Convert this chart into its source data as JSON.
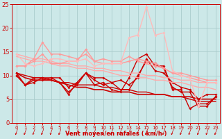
{
  "bg_color": "#cce8e8",
  "grid_color": "#aacccc",
  "xlabel": "Vent moyen/en rafales ( km/h )",
  "xlabel_color": "#cc0000",
  "tick_color": "#cc0000",
  "xlim": [
    -0.5,
    23.5
  ],
  "ylim": [
    0,
    25
  ],
  "yticks": [
    0,
    5,
    10,
    15,
    20,
    25
  ],
  "xticks": [
    0,
    1,
    2,
    3,
    4,
    5,
    6,
    7,
    8,
    9,
    10,
    11,
    12,
    13,
    14,
    15,
    16,
    17,
    18,
    19,
    20,
    21,
    22,
    23
  ],
  "series": [
    {
      "x": [
        0,
        1,
        2,
        3,
        4,
        5,
        6,
        7,
        8,
        9,
        10,
        11,
        12,
        13,
        14,
        15,
        16,
        17,
        18,
        19,
        20,
        21,
        22,
        23
      ],
      "y": [
        10.5,
        8.0,
        8.5,
        9.5,
        9.0,
        8.5,
        6.0,
        8.5,
        10.5,
        8.0,
        8.5,
        7.0,
        6.5,
        9.5,
        13.5,
        14.5,
        12.0,
        12.0,
        7.0,
        7.0,
        3.0,
        4.0,
        4.0,
        5.5
      ],
      "color": "#cc0000",
      "lw": 1.0,
      "marker": "D",
      "ms": 2.0
    },
    {
      "x": [
        0,
        1,
        2,
        3,
        4,
        5,
        6,
        7,
        8,
        9,
        10,
        11,
        12,
        13,
        14,
        15,
        16,
        17,
        18,
        19,
        20,
        21,
        22,
        23
      ],
      "y": [
        10.0,
        8.0,
        9.5,
        9.5,
        9.5,
        9.5,
        7.5,
        8.5,
        10.5,
        9.5,
        9.5,
        8.5,
        9.0,
        8.0,
        9.5,
        13.5,
        11.0,
        10.5,
        8.5,
        7.5,
        7.0,
        5.0,
        6.0,
        6.0
      ],
      "color": "#cc0000",
      "lw": 1.0,
      "marker": "D",
      "ms": 2.0
    },
    {
      "x": [
        0,
        1,
        2,
        3,
        4,
        5,
        6,
        7,
        8,
        9,
        10,
        11,
        12,
        13,
        14,
        15,
        16,
        17,
        18,
        19,
        20,
        21,
        22,
        23
      ],
      "y": [
        10.5,
        9.5,
        9.0,
        9.0,
        9.0,
        8.5,
        8.0,
        7.5,
        7.5,
        7.0,
        7.0,
        6.5,
        6.5,
        6.5,
        6.0,
        6.0,
        6.0,
        6.0,
        5.5,
        5.5,
        5.5,
        5.0,
        5.0,
        5.0
      ],
      "color": "#cc0000",
      "lw": 1.2,
      "marker": null,
      "ms": 0
    },
    {
      "x": [
        0,
        1,
        2,
        3,
        4,
        5,
        6,
        7,
        8,
        9,
        10,
        11,
        12,
        13,
        14,
        15,
        16,
        17,
        18,
        19,
        20,
        21,
        22,
        23
      ],
      "y": [
        10.5,
        10.0,
        9.5,
        9.5,
        9.0,
        8.5,
        8.5,
        8.0,
        8.0,
        8.0,
        7.5,
        7.5,
        7.0,
        7.0,
        6.5,
        6.5,
        6.0,
        6.0,
        5.5,
        5.5,
        5.0,
        4.5,
        4.5,
        4.5
      ],
      "color": "#cc0000",
      "lw": 1.0,
      "marker": null,
      "ms": 0
    },
    {
      "x": [
        0,
        1,
        2,
        3,
        4,
        5,
        6,
        7,
        8,
        9,
        10,
        11,
        12,
        13,
        14,
        15,
        16,
        17,
        18,
        19,
        20,
        21,
        22,
        23
      ],
      "y": [
        10.0,
        8.0,
        9.0,
        9.0,
        9.5,
        8.5,
        6.5,
        8.0,
        10.5,
        9.0,
        8.0,
        8.5,
        7.0,
        7.0,
        10.0,
        13.0,
        12.5,
        11.5,
        7.5,
        6.5,
        6.5,
        3.5,
        3.5,
        5.5
      ],
      "color": "#cc0000",
      "lw": 1.0,
      "marker": "D",
      "ms": 2.0
    },
    {
      "x": [
        0,
        1,
        2,
        3,
        4,
        5,
        6,
        7,
        8,
        9,
        10,
        11,
        12,
        13,
        14,
        15,
        16,
        17,
        18,
        19,
        20,
        21,
        22,
        23
      ],
      "y": [
        14.5,
        14.0,
        13.5,
        13.5,
        13.0,
        12.5,
        12.5,
        12.0,
        12.0,
        11.5,
        11.5,
        11.0,
        11.0,
        10.5,
        10.5,
        10.0,
        10.0,
        9.5,
        9.5,
        9.0,
        9.0,
        8.5,
        8.5,
        8.5
      ],
      "color": "#ffaaaa",
      "lw": 1.0,
      "marker": null,
      "ms": 0
    },
    {
      "x": [
        0,
        1,
        2,
        3,
        4,
        5,
        6,
        7,
        8,
        9,
        10,
        11,
        12,
        13,
        14,
        15,
        16,
        17,
        18,
        19,
        20,
        21,
        22,
        23
      ],
      "y": [
        14.0,
        13.5,
        13.0,
        13.0,
        12.5,
        12.0,
        12.0,
        11.5,
        11.5,
        11.0,
        11.0,
        10.5,
        10.0,
        10.0,
        9.5,
        9.5,
        9.0,
        9.0,
        8.5,
        8.5,
        8.0,
        7.5,
        7.5,
        7.0
      ],
      "color": "#ffaaaa",
      "lw": 1.0,
      "marker": null,
      "ms": 0
    },
    {
      "x": [
        0,
        1,
        2,
        3,
        4,
        5,
        6,
        7,
        8,
        9,
        10,
        11,
        12,
        13,
        14,
        15,
        16,
        17,
        18,
        19,
        20,
        21,
        22,
        23
      ],
      "y": [
        12.0,
        12.0,
        13.5,
        17.0,
        14.5,
        14.5,
        14.0,
        13.5,
        14.5,
        13.0,
        13.5,
        13.0,
        13.0,
        14.0,
        13.0,
        12.5,
        12.0,
        11.5,
        10.5,
        10.5,
        10.0,
        9.5,
        9.0,
        9.0
      ],
      "color": "#ff9999",
      "lw": 1.0,
      "marker": "D",
      "ms": 2.0
    },
    {
      "x": [
        0,
        1,
        2,
        3,
        4,
        5,
        6,
        7,
        8,
        9,
        10,
        11,
        12,
        13,
        14,
        15,
        16,
        17,
        18,
        19,
        20,
        21,
        22,
        23
      ],
      "y": [
        12.0,
        12.0,
        13.0,
        14.5,
        12.5,
        12.5,
        13.0,
        13.0,
        15.5,
        13.0,
        12.5,
        12.5,
        12.5,
        13.0,
        13.5,
        13.0,
        12.5,
        11.5,
        10.5,
        10.0,
        9.5,
        9.0,
        8.5,
        8.5
      ],
      "color": "#ff9999",
      "lw": 1.0,
      "marker": "D",
      "ms": 2.0
    },
    {
      "x": [
        0,
        1,
        2,
        3,
        4,
        5,
        6,
        7,
        8,
        9,
        10,
        11,
        12,
        13,
        14,
        15,
        16,
        17,
        18,
        19,
        20,
        21,
        22,
        23
      ],
      "y": [
        14.5,
        12.5,
        12.0,
        12.5,
        13.5,
        13.5,
        13.0,
        13.0,
        13.5,
        12.0,
        12.5,
        12.5,
        12.5,
        18.0,
        18.5,
        24.5,
        18.5,
        19.0,
        11.0,
        10.0,
        9.5,
        3.5,
        8.5,
        8.5
      ],
      "color": "#ffbbbb",
      "lw": 1.0,
      "marker": "D",
      "ms": 2.0
    }
  ]
}
